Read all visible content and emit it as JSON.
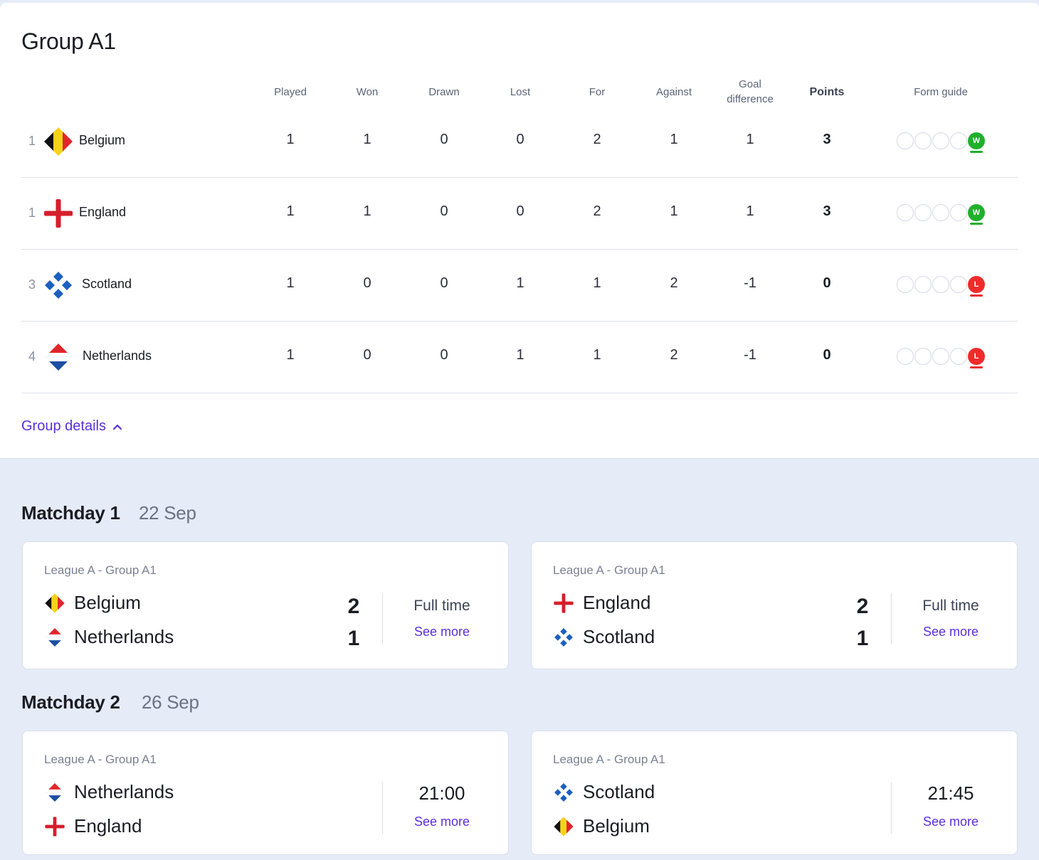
{
  "group": {
    "title": "Group A1",
    "columns": [
      "Played",
      "Won",
      "Drawn",
      "Lost",
      "For",
      "Against",
      "Goal\ndifference",
      "Points",
      "Form guide"
    ],
    "standings": [
      {
        "rank": "1",
        "team": "Belgium",
        "flag": "belgium",
        "played": "1",
        "won": "1",
        "drawn": "0",
        "lost": "0",
        "for": "2",
        "against": "1",
        "gd": "1",
        "points": "3",
        "form": "W"
      },
      {
        "rank": "1",
        "team": "England",
        "flag": "england",
        "played": "1",
        "won": "1",
        "drawn": "0",
        "lost": "0",
        "for": "2",
        "against": "1",
        "gd": "1",
        "points": "3",
        "form": "W"
      },
      {
        "rank": "3",
        "team": "Scotland",
        "flag": "scotland",
        "played": "1",
        "won": "0",
        "drawn": "0",
        "lost": "1",
        "for": "1",
        "against": "2",
        "gd": "-1",
        "points": "0",
        "form": "L"
      },
      {
        "rank": "4",
        "team": "Netherlands",
        "flag": "netherlands",
        "played": "1",
        "won": "0",
        "drawn": "0",
        "lost": "1",
        "for": "1",
        "against": "2",
        "gd": "-1",
        "points": "0",
        "form": "L"
      }
    ],
    "details_link": "Group details"
  },
  "matchdays": [
    {
      "title": "Matchday 1",
      "date": "22 Sep",
      "matches": [
        {
          "league": "League A - Group A1",
          "home": "Belgium",
          "home_flag": "belgium",
          "away": "Netherlands",
          "away_flag": "netherlands",
          "home_score": "2",
          "away_score": "1",
          "status": "Full time",
          "see_more": "See more"
        },
        {
          "league": "League A - Group A1",
          "home": "England",
          "home_flag": "england",
          "away": "Scotland",
          "away_flag": "scotland",
          "home_score": "2",
          "away_score": "1",
          "status": "Full time",
          "see_more": "See more"
        }
      ]
    },
    {
      "title": "Matchday 2",
      "date": "26 Sep",
      "matches": [
        {
          "league": "League A - Group A1",
          "home": "Netherlands",
          "home_flag": "netherlands",
          "away": "England",
          "away_flag": "england",
          "home_score": "",
          "away_score": "",
          "status": "21:00",
          "see_more": "See more"
        },
        {
          "league": "League A - Group A1",
          "home": "Scotland",
          "home_flag": "scotland",
          "away": "Belgium",
          "away_flag": "belgium",
          "home_score": "",
          "away_score": "",
          "status": "21:45",
          "see_more": "See more"
        }
      ]
    }
  ],
  "colors": {
    "accent": "#5b2fd8",
    "win": "#1fb02c",
    "loss": "#ef2b2b",
    "background": "#e6ebf8"
  }
}
